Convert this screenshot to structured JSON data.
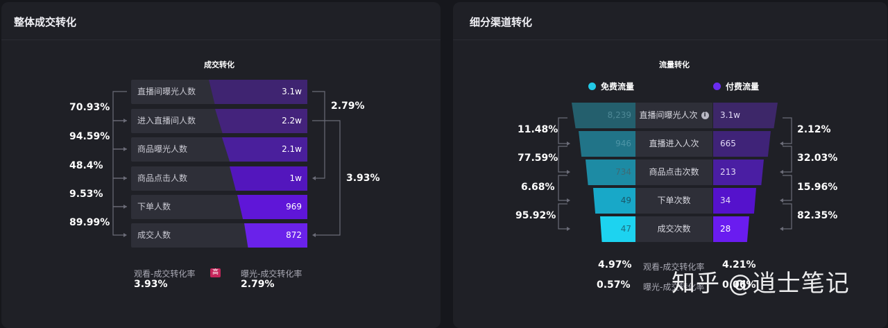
{
  "left": {
    "title": "整体成交转化",
    "chart_title": "成交转化",
    "rows": [
      {
        "label": "直播间曝光人数",
        "value": "3.1w"
      },
      {
        "label": "进入直播间人数",
        "value": "2.2w"
      },
      {
        "label": "商品曝光人数",
        "value": "2.1w"
      },
      {
        "label": "商品点击人数",
        "value": "1w"
      },
      {
        "label": "下单人数",
        "value": "969"
      },
      {
        "label": "成交人数",
        "value": "872"
      }
    ],
    "step_rates": [
      "70.93%",
      "94.59%",
      "48.4%",
      "9.53%",
      "89.99%"
    ],
    "right_rates": [
      "2.79%",
      "3.93%"
    ],
    "summary": [
      {
        "label": "观看-成交转化率",
        "value": "3.93%",
        "badge": "高"
      },
      {
        "label": "曝光-成交转化率",
        "value": "2.79%"
      }
    ]
  },
  "right": {
    "title": "细分渠道转化",
    "chart_title": "流量转化",
    "legend": [
      {
        "label": "免费流量",
        "color": "#22c9e6"
      },
      {
        "label": "付费流量",
        "color": "#6a2cf0"
      }
    ],
    "rows": [
      {
        "label": "直播间曝光人次",
        "free": "8,239",
        "paid": "3.1w",
        "info": "i"
      },
      {
        "label": "直播进入人次",
        "free": "946",
        "paid": "665"
      },
      {
        "label": "商品点击次数",
        "free": "734",
        "paid": "213"
      },
      {
        "label": "下单次数",
        "free": "49",
        "paid": "34"
      },
      {
        "label": "成交次数",
        "free": "47",
        "paid": "28"
      }
    ],
    "free_rates": [
      "11.48%",
      "77.59%",
      "6.68%",
      "95.92%"
    ],
    "paid_rates": [
      "2.12%",
      "32.03%",
      "15.96%",
      "82.35%"
    ],
    "summary": [
      {
        "free": "4.97%",
        "label": "观看-成交转化率",
        "paid": "4.21%"
      },
      {
        "free": "0.57%",
        "label": "曝光-成交转化率",
        "paid": "0.06%"
      }
    ]
  },
  "watermark": "知乎 @逍士笔记"
}
